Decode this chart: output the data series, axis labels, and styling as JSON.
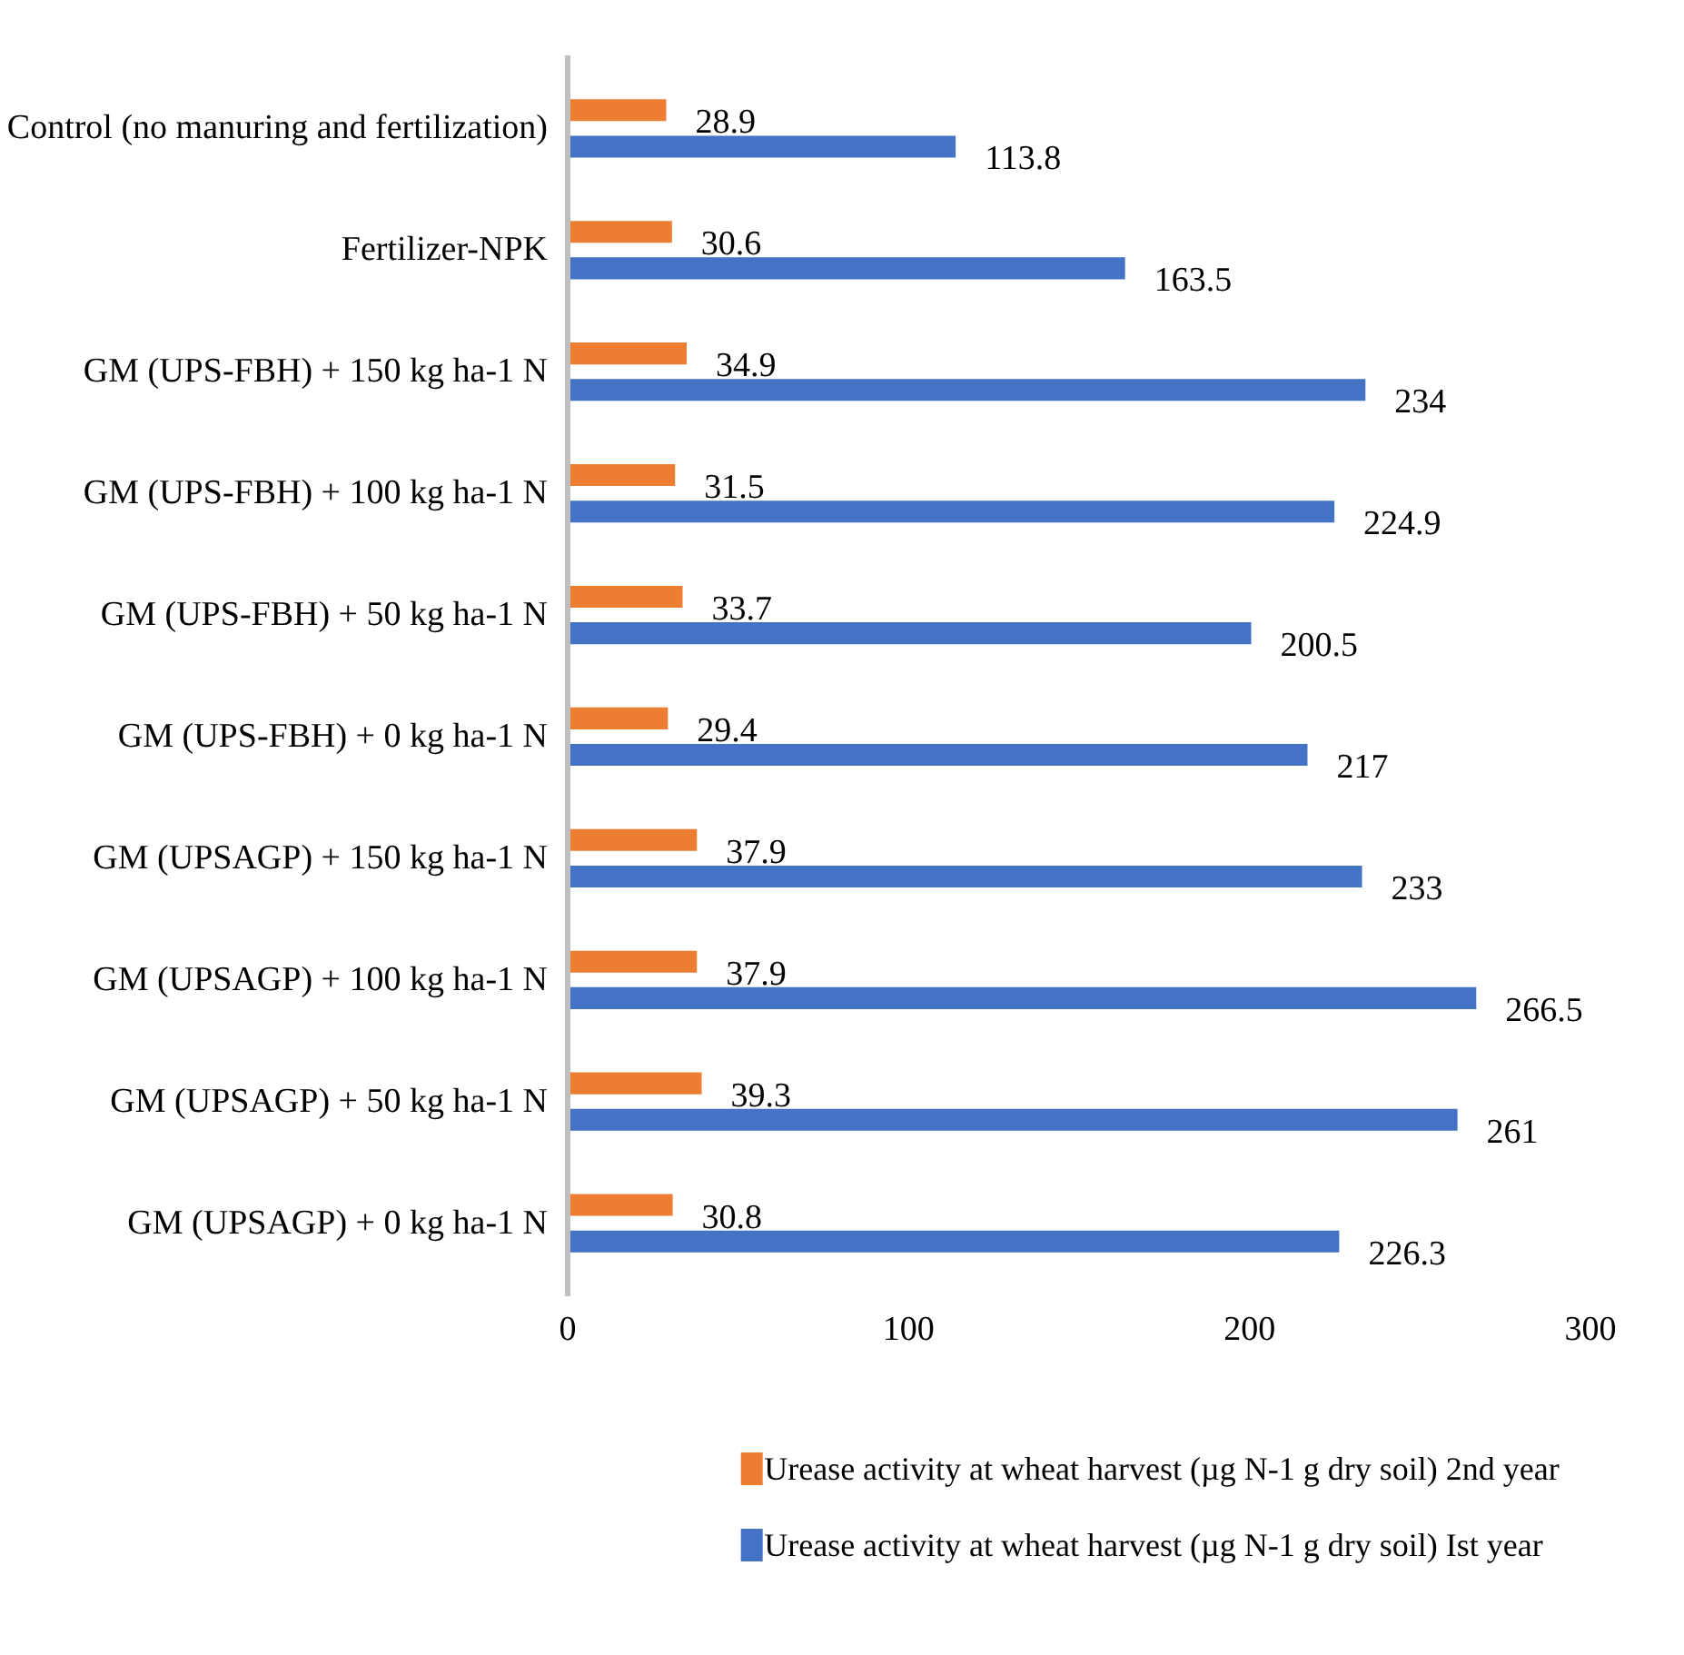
{
  "chart_data": {
    "type": "bar",
    "orientation": "horizontal",
    "categories": [
      "Control (no manuring and fertilization)",
      "Fertilizer-NPK",
      "GM (UPS-FBH) + 150 kg ha-1 N",
      "GM (UPS-FBH) + 100 kg ha-1 N",
      "GM (UPS-FBH) + 50 kg ha-1 N",
      "GM (UPS-FBH) + 0 kg ha-1 N",
      "GM (UPSAGP) + 150 kg ha-1 N",
      "GM (UPSAGP) + 100 kg ha-1 N",
      "GM (UPSAGP) + 50 kg ha-1 N",
      "GM (UPSAGP) + 0 kg ha-1 N"
    ],
    "series": [
      {
        "name": "Urease activity at wheat harvest (µg N-1 g dry soil)  2nd year",
        "color": "#ed7d31",
        "values": [
          28.9,
          30.6,
          34.9,
          31.5,
          33.7,
          29.4,
          37.9,
          37.9,
          39.3,
          30.8
        ]
      },
      {
        "name": "Urease activity at wheat harvest (µg N-1 g dry soil)  Ist year",
        "color": "#4472c4",
        "values": [
          113.8,
          163.5,
          234,
          224.9,
          200.5,
          217,
          233,
          266.5,
          261,
          226.3
        ]
      }
    ],
    "xlim": [
      0,
      300
    ],
    "xticks": [
      0,
      100,
      200,
      300
    ],
    "grid": false,
    "legend": "bottom",
    "data_labels": true
  }
}
